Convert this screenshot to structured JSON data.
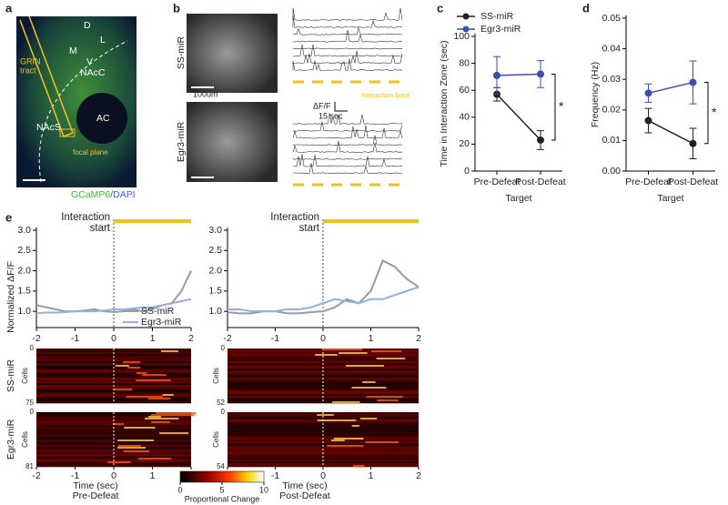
{
  "figure": {
    "panel_labels": [
      "a",
      "b",
      "c",
      "d",
      "e"
    ],
    "a": {
      "compass": [
        "D",
        "L",
        "M",
        "V"
      ],
      "labels": [
        "GRIN",
        "tract",
        "NAcC",
        "NAcS",
        "AC",
        "focal plane"
      ],
      "stain": [
        "GCaMP6",
        "/DAPI"
      ]
    },
    "b": {
      "rows": [
        "SS-miR",
        "Egr3-miR"
      ],
      "scale_bar": "100um",
      "df_label": "ΔF/F",
      "time_label": "15 sec",
      "bout_label": "Interaction Bout"
    }
  },
  "chart_data": [
    {
      "type": "line",
      "ylabel": "Time in Interaction Zone (sec)",
      "xlabel": "Target",
      "categories": [
        "Pre-Defeat",
        "Post-Defeat"
      ],
      "series": [
        {
          "name": "SS-miR",
          "color": "#222222",
          "values": [
            57,
            23
          ],
          "errors": [
            5,
            7
          ]
        },
        {
          "name": "Egr3-miR",
          "color": "#3a4fb0",
          "values": [
            71,
            72
          ],
          "errors": [
            14,
            10
          ]
        }
      ],
      "ylim": [
        0,
        100
      ],
      "yticks": [
        0,
        20,
        40,
        60,
        80,
        100
      ],
      "legend": "top",
      "annotation": "*"
    },
    {
      "type": "line",
      "ylabel": "Frequency (Hz)",
      "xlabel": "Target",
      "categories": [
        "Pre-Defeat",
        "Post-Defeat"
      ],
      "series": [
        {
          "name": "SS-miR",
          "color": "#222222",
          "values": [
            0.0165,
            0.009
          ],
          "errors": [
            0.004,
            0.005
          ]
        },
        {
          "name": "Egr3-miR",
          "color": "#3a4fb0",
          "values": [
            0.0255,
            0.029
          ],
          "errors": [
            0.003,
            0.007
          ]
        }
      ],
      "ylim": [
        0,
        0.05
      ],
      "yticks": [
        {
          "value": 0,
          "label": "0.00"
        },
        {
          "value": 0.01,
          "label": "0.01"
        },
        {
          "value": 0.02,
          "label": "0.02"
        },
        {
          "value": 0.03,
          "label": "0.03"
        },
        {
          "value": 0.04,
          "label": "0.04"
        },
        {
          "value": 0.05,
          "label": "0.05"
        }
      ],
      "annotation": "*"
    },
    {
      "type": "line",
      "ylabel": "Normalized ΔF/F",
      "annotation": [
        "Interaction",
        "start"
      ],
      "x": [
        -2,
        -1.75,
        -1.5,
        -1.25,
        -1,
        -0.75,
        -0.5,
        -0.25,
        0,
        0.25,
        0.5,
        0.75,
        1,
        1.25,
        1.5,
        1.75,
        2
      ],
      "series": [
        {
          "name": "SS-miR",
          "color": "#9a9a9a",
          "values": [
            1.15,
            1.1,
            1.05,
            1.0,
            1.0,
            1.02,
            1.05,
            1.0,
            0.98,
            1.0,
            1.05,
            1.0,
            1.05,
            1.15,
            1.2,
            1.5,
            2.0
          ]
        },
        {
          "name": "Egr3-miR",
          "color": "#8fb0e0",
          "values": [
            0.95,
            0.97,
            0.97,
            0.98,
            1.0,
            1.0,
            1.0,
            1.02,
            1.05,
            1.05,
            1.07,
            1.1,
            1.1,
            1.15,
            1.2,
            1.25,
            1.3
          ]
        }
      ],
      "xlim": [
        -2,
        2
      ],
      "xticks": [
        -2,
        -1,
        0,
        1,
        2
      ],
      "ylim": [
        0.6,
        3.0
      ],
      "yticks": [
        {
          "value": 1,
          "label": "1.0"
        },
        {
          "value": 1.5,
          "label": "1.5"
        },
        {
          "value": 2,
          "label": "2.0"
        },
        {
          "value": 2.5,
          "label": "2.5"
        },
        {
          "value": 3,
          "label": "3.0"
        }
      ],
      "legend": "lower right"
    },
    {
      "type": "line",
      "annotation": [
        "Interaction",
        "start"
      ],
      "x": [
        -2,
        -1.75,
        -1.5,
        -1.25,
        -1,
        -0.75,
        -0.5,
        -0.25,
        0,
        0.25,
        0.5,
        0.75,
        1,
        1.25,
        1.5,
        1.75,
        2
      ],
      "series": [
        {
          "name": "SS-miR",
          "color": "#9a9a9a",
          "values": [
            0.98,
            0.95,
            0.95,
            1.0,
            1.0,
            0.95,
            0.95,
            0.98,
            1.0,
            1.1,
            1.3,
            1.2,
            1.5,
            2.25,
            2.1,
            1.8,
            1.6
          ]
        },
        {
          "name": "Egr3-miR",
          "color": "#8fb0e0",
          "values": [
            1.05,
            1.05,
            1.0,
            1.0,
            1.0,
            1.05,
            1.05,
            1.1,
            1.2,
            1.3,
            1.25,
            1.2,
            1.3,
            1.3,
            1.4,
            1.5,
            1.6
          ]
        }
      ],
      "xlim": [
        -2,
        2
      ],
      "xticks": [
        -2,
        -1,
        0,
        1,
        2
      ],
      "ylim": [
        0.6,
        3.0
      ],
      "yticks": [
        {
          "value": 1,
          "label": "1.0"
        },
        {
          "value": 1.5,
          "label": "1.5"
        },
        {
          "value": 2,
          "label": "2.0"
        },
        {
          "value": 2.5,
          "label": "2.5"
        },
        {
          "value": 3,
          "label": "3.0"
        }
      ]
    },
    {
      "type": "heatmap",
      "row_label": "SS-miR",
      "ylabel": "Cells",
      "xlim": [
        -2,
        2
      ],
      "ylim": [
        0,
        75
      ],
      "yticks": [
        0,
        75
      ]
    },
    {
      "type": "heatmap",
      "ylabel": "Cells",
      "xlim": [
        -2,
        2
      ],
      "ylim": [
        0,
        52
      ],
      "yticks": [
        0,
        52
      ]
    },
    {
      "type": "heatmap",
      "row_label": "Egr3-miR",
      "ylabel": "Cells",
      "xlim": [
        -2,
        2
      ],
      "ylim": [
        0,
        81
      ],
      "yticks": [
        0,
        81
      ],
      "xticks": [
        -2,
        -1,
        0,
        1,
        2
      ],
      "xlabel": "Time (sec)",
      "subtitle": "Pre-Defeat"
    },
    {
      "type": "heatmap",
      "ylabel": "Cells",
      "xlim": [
        -2,
        2
      ],
      "ylim": [
        0,
        54
      ],
      "yticks": [
        0,
        54
      ],
      "xticks": [
        -2,
        -1,
        0,
        1,
        2
      ],
      "xlabel": "Time (sec)",
      "subtitle": "Post-Defeat"
    },
    {
      "type": "colorbar",
      "title": "Proportional Change",
      "xlim": [
        0,
        10
      ],
      "xticks": [
        0,
        5,
        10
      ]
    }
  ]
}
